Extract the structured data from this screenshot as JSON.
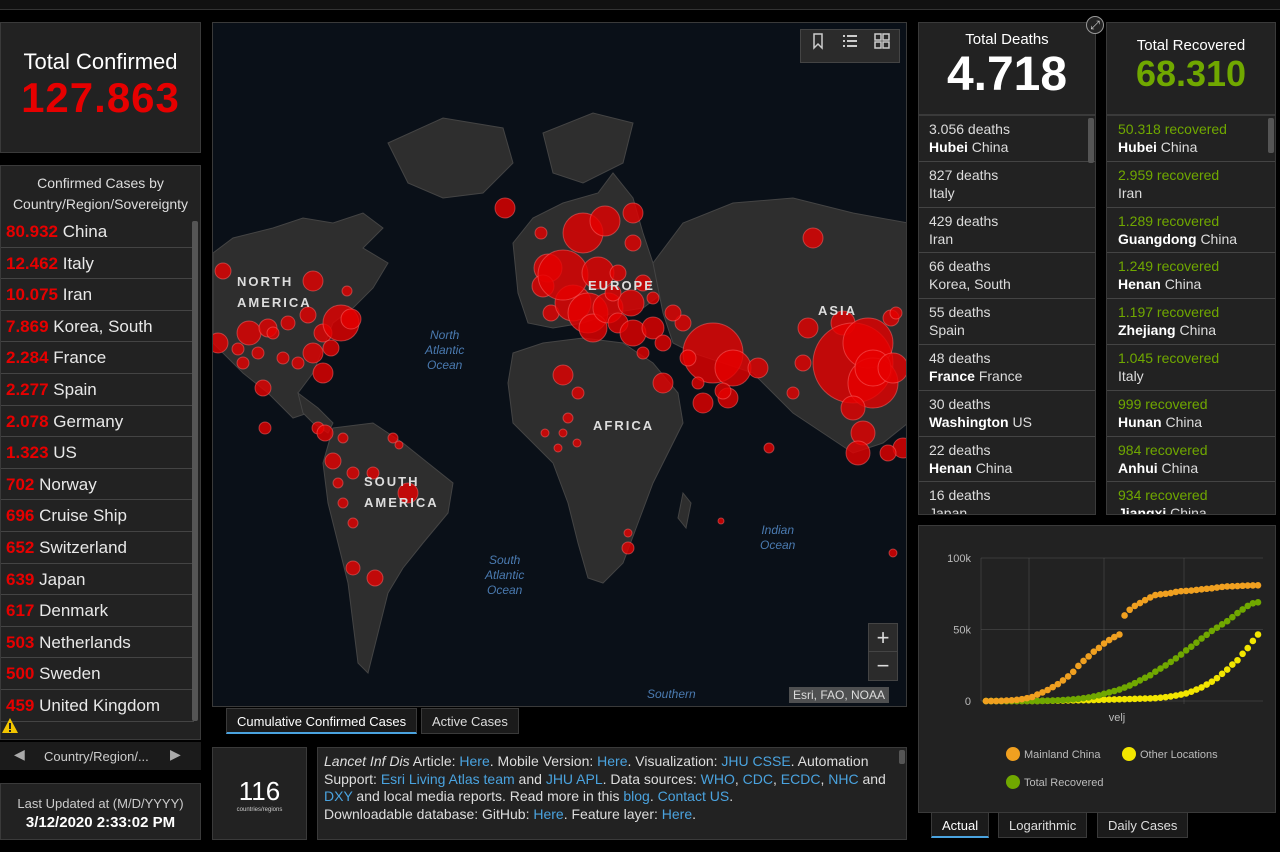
{
  "total_confirmed": {
    "label": "Total Confirmed",
    "value": "127.863"
  },
  "confirmed_list": {
    "header": "Confirmed Cases by Country/Region/Sovereignty",
    "rows": [
      {
        "value": "80.932",
        "name": "China"
      },
      {
        "value": "12.462",
        "name": "Italy"
      },
      {
        "value": "10.075",
        "name": "Iran"
      },
      {
        "value": "7.869",
        "name": "Korea, South"
      },
      {
        "value": "2.284",
        "name": "France"
      },
      {
        "value": "2.277",
        "name": "Spain"
      },
      {
        "value": "2.078",
        "name": "Germany"
      },
      {
        "value": "1.323",
        "name": "US"
      },
      {
        "value": "702",
        "name": "Norway"
      },
      {
        "value": "696",
        "name": "Cruise Ship"
      },
      {
        "value": "652",
        "name": "Switzerland"
      },
      {
        "value": "639",
        "name": "Japan"
      },
      {
        "value": "617",
        "name": "Denmark"
      },
      {
        "value": "503",
        "name": "Netherlands"
      },
      {
        "value": "500",
        "name": "Sweden"
      },
      {
        "value": "459",
        "name": "United Kingdom"
      }
    ]
  },
  "pager": {
    "label": "Country/Region/...",
    "prev_icon": "chevron-left-icon",
    "next_icon": "chevron-right-icon"
  },
  "last_updated": {
    "label": "Last Updated at (M/D/YYYY)",
    "value": "3/12/2020 2:33:02 PM"
  },
  "map": {
    "labels": {
      "north_america": [
        "NORTH",
        "AMERICA"
      ],
      "south_america": [
        "SOUTH",
        "AMERICA"
      ],
      "europe": "EUROPE",
      "africa": "AFRICA",
      "asia": "ASIA"
    },
    "oceans": {
      "north_atlantic": [
        "North",
        "Atlantic",
        "Ocean"
      ],
      "south_atlantic": [
        "South",
        "Atlantic",
        "Ocean"
      ],
      "indian": [
        "Indian",
        "Ocean"
      ],
      "southern": "Southern"
    },
    "attribution": "Esri, FAO, NOAA",
    "zoom_in": "+",
    "zoom_out": "−",
    "bubble_color": "#e60000"
  },
  "map_tabs": {
    "cumulative": "Cumulative Confirmed Cases",
    "active": "Active Cases"
  },
  "countries": {
    "count": "116",
    "label": "countries/regions"
  },
  "info": {
    "t1": "Lancet Inf Dis",
    "t2": " Article: ",
    "l1": "Here",
    "t3": ". Mobile Version: ",
    "l2": "Here",
    "t4": ". Visualization: ",
    "l3": "JHU CSSE",
    "t5": ". Automation Support: ",
    "l4": "Esri Living Atlas team",
    "t6": " and ",
    "l5": "JHU APL",
    "t7": ". Data sources: ",
    "l6": "WHO",
    "l7": "CDC",
    "l8": "ECDC",
    "l9": "NHC",
    "t8": " and ",
    "l10": "DXY",
    "t9": " and local media reports. Read more in this ",
    "l11": "blog",
    "l12": "Contact US",
    "t10": "Downloadable database: GitHub: ",
    "l13": "Here",
    "t11": ". Feature layer: ",
    "l14": "Here"
  },
  "total_deaths": {
    "label": "Total Deaths",
    "value": "4.718"
  },
  "deaths_list": [
    {
      "count": "3.056 deaths",
      "region": "Hubei",
      "country": "China"
    },
    {
      "count": "827 deaths",
      "region": "",
      "country": "Italy"
    },
    {
      "count": "429 deaths",
      "region": "",
      "country": "Iran"
    },
    {
      "count": "66 deaths",
      "region": "",
      "country": "Korea, South"
    },
    {
      "count": "55 deaths",
      "region": "",
      "country": "Spain"
    },
    {
      "count": "48 deaths",
      "region": "France",
      "country": "France"
    },
    {
      "count": "30 deaths",
      "region": "Washington",
      "country": "US"
    },
    {
      "count": "22 deaths",
      "region": "Henan",
      "country": "China"
    },
    {
      "count": "16 deaths",
      "region": "",
      "country": "Japan"
    }
  ],
  "total_recovered": {
    "label": "Total Recovered",
    "value": "68.310"
  },
  "recovered_list": [
    {
      "count": "50.318 recovered",
      "region": "Hubei",
      "country": "China"
    },
    {
      "count": "2.959 recovered",
      "region": "",
      "country": "Iran"
    },
    {
      "count": "1.289 recovered",
      "region": "Guangdong",
      "country": "China"
    },
    {
      "count": "1.249 recovered",
      "region": "Henan",
      "country": "China"
    },
    {
      "count": "1.197 recovered",
      "region": "Zhejiang",
      "country": "China"
    },
    {
      "count": "1.045 recovered",
      "region": "",
      "country": "Italy"
    },
    {
      "count": "999 recovered",
      "region": "Hunan",
      "country": "China"
    },
    {
      "count": "984 recovered",
      "region": "Anhui",
      "country": "China"
    },
    {
      "count": "934 recovered",
      "region": "Jiangxi",
      "country": "China"
    }
  ],
  "chart_tabs": {
    "actual": "Actual",
    "log": "Logarithmic",
    "daily": "Daily Cases"
  },
  "chart_data": {
    "type": "scatter",
    "xlabel": "velj",
    "ylabel": "",
    "ylim": [
      0,
      100000
    ],
    "yticks": [
      "100k",
      "50k",
      "0"
    ],
    "series": [
      {
        "name": "Mainland China",
        "color": "#f0a020",
        "values": [
          0,
          0,
          0,
          100,
          300,
          500,
          800,
          1300,
          2000,
          2800,
          4500,
          6000,
          7700,
          9700,
          11800,
          14400,
          17200,
          20400,
          24500,
          28000,
          31200,
          34500,
          37100,
          40200,
          42600,
          44700,
          46500,
          59800,
          63800,
          66500,
          68500,
          70500,
          72400,
          74100,
          74600,
          75000,
          75500,
          76300,
          76800,
          77000,
          77200,
          77700,
          78100,
          78500,
          78800,
          79300,
          79800,
          80100,
          80200,
          80400,
          80600,
          80700,
          80800,
          80900
        ]
      },
      {
        "name": "Other Locations",
        "color": "#f2e600",
        "values": [
          0,
          0,
          0,
          0,
          0,
          0,
          0,
          0,
          0,
          0,
          0,
          100,
          150,
          200,
          250,
          300,
          400,
          450,
          500,
          550,
          600,
          700,
          800,
          900,
          1000,
          1100,
          1200,
          1300,
          1400,
          1500,
          1600,
          1700,
          1800,
          2000,
          2300,
          2700,
          3200,
          3800,
          4500,
          5300,
          6500,
          8000,
          9500,
          11500,
          13500,
          16000,
          19000,
          22000,
          25500,
          28500,
          33000,
          37000,
          42000,
          46500
        ]
      },
      {
        "name": "Total Recovered",
        "color": "#70a800",
        "values": [
          0,
          0,
          0,
          0,
          0,
          0,
          0,
          0,
          0,
          0,
          0,
          100,
          200,
          300,
          500,
          700,
          900,
          1200,
          1500,
          2000,
          2500,
          3200,
          4000,
          5000,
          6000,
          7000,
          8000,
          9400,
          10800,
          12500,
          14400,
          16200,
          18000,
          20500,
          22700,
          24900,
          27300,
          29800,
          32500,
          35400,
          38000,
          40800,
          43700,
          46300,
          49000,
          51300,
          53600,
          55800,
          58600,
          61500,
          64000,
          66500,
          68300,
          69000
        ]
      }
    ]
  }
}
